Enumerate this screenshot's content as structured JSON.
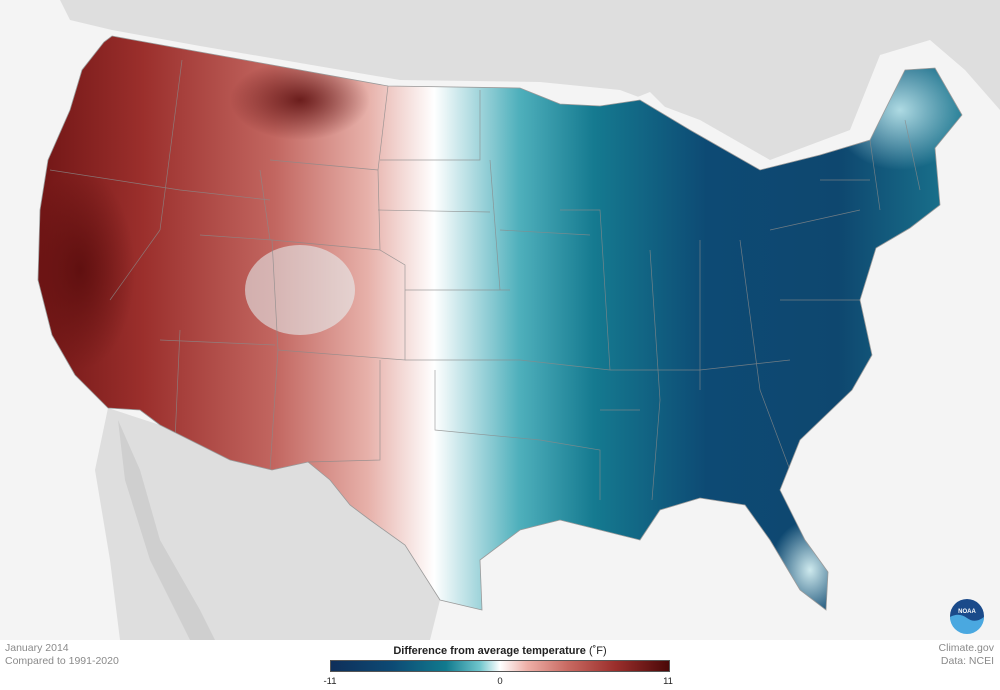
{
  "map": {
    "colors": {
      "ocean": "#f4f4f4",
      "land_outside": "#dedede",
      "cold_dark": "#0f2f5a",
      "cold_mid": "#117a8e",
      "neutral": "#ffffff",
      "warm_mid": "#c86a62",
      "warm_dark": "#4a0808",
      "state_line": "#8a8a8a"
    }
  },
  "footer": {
    "date": "January 2014",
    "baseline": "Compared to 1991-2020",
    "legend_title": "Difference from average temperature",
    "legend_unit": "(˚F)",
    "tick_min": "-11",
    "tick_mid": "0",
    "tick_max": "11",
    "credit": "Climate.gov",
    "source": "Data: NCEI"
  },
  "logo": {
    "label": "NOAA",
    "icon": "noaa-logo"
  }
}
